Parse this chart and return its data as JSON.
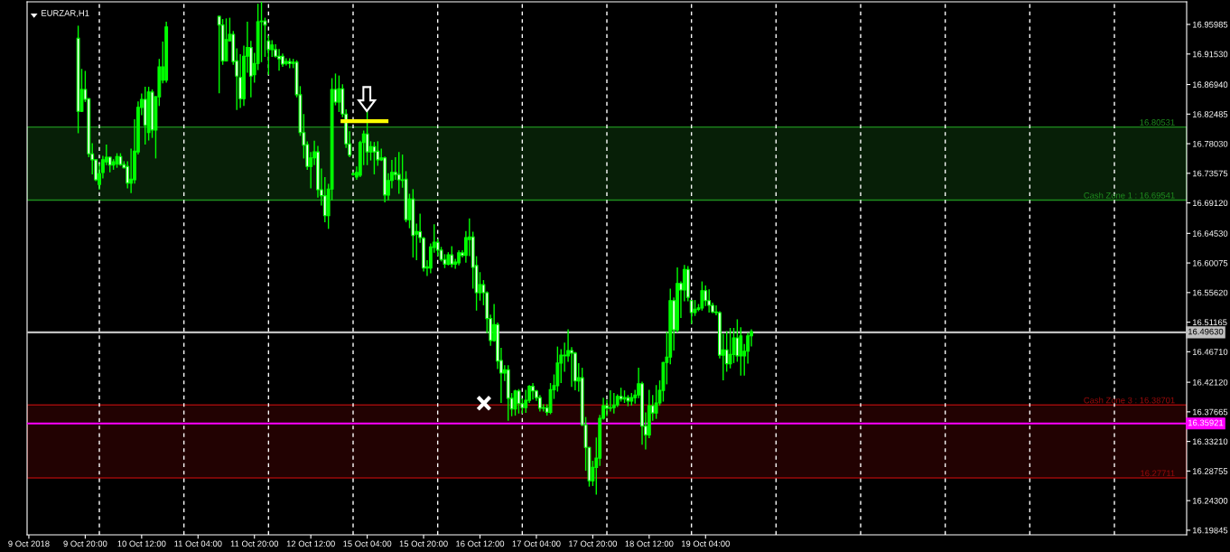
{
  "chart_data": {
    "type": "candlestick",
    "title": "EURZAR,H1",
    "color": "#00ff00",
    "categories": [
      "9 Oct 2018",
      null,
      null,
      null,
      null,
      null,
      null,
      null,
      null,
      null,
      null,
      null,
      null,
      null,
      null,
      null,
      "9 Oct 20:00",
      null,
      null,
      null,
      null,
      null,
      null,
      null,
      null,
      null,
      null,
      null,
      null,
      null,
      null,
      null,
      "10 Oct 12:00",
      null,
      null,
      null,
      null,
      null,
      null,
      null,
      null,
      null,
      null,
      null,
      null,
      null,
      null,
      null,
      "11 Oct 04:00",
      null,
      null,
      null,
      null,
      null,
      null,
      null,
      null,
      null,
      null,
      null,
      null,
      null,
      null,
      null,
      "11 Oct 20:00",
      null,
      null,
      null,
      null,
      null,
      null,
      null,
      null,
      null,
      null,
      null,
      null,
      null,
      null,
      null,
      "12 Oct 12:00",
      null,
      null,
      null,
      null,
      null,
      null,
      null,
      null,
      null,
      null,
      null,
      null,
      null,
      null,
      null,
      "15 Oct 04:00",
      null,
      null,
      null,
      null,
      null,
      null,
      null,
      null,
      null,
      null,
      null,
      null,
      null,
      null,
      null,
      "15 Oct 20:00",
      null,
      null,
      null,
      null,
      null,
      null,
      null,
      null,
      null,
      null,
      null,
      null,
      null,
      null,
      null,
      "16 Oct 12:00",
      null,
      null,
      null,
      null,
      null,
      null,
      null,
      null,
      null,
      null,
      null,
      null,
      null,
      null,
      null,
      "17 Oct 04:00",
      null,
      null,
      null,
      null,
      null,
      null,
      null,
      null,
      null,
      null,
      null,
      null,
      null,
      null,
      null,
      "17 Oct 20:00",
      null,
      null,
      null,
      null,
      null,
      null,
      null,
      null,
      null,
      null,
      null,
      null,
      null,
      null,
      null,
      "18 Oct 12:00",
      null,
      null,
      null,
      null,
      null,
      null,
      null,
      null,
      null,
      null,
      null,
      null,
      null,
      null,
      null,
      "19 Oct 04:00",
      null,
      null,
      null,
      null,
      null,
      null,
      null,
      null,
      null,
      null,
      null,
      null,
      null,
      null,
      null,
      null,
      null,
      null,
      null,
      null,
      null,
      null,
      null,
      null,
      null,
      null,
      null,
      null,
      null,
      null,
      null,
      null,
      null,
      null,
      null,
      null,
      null,
      null,
      null,
      null,
      null,
      null,
      null,
      null,
      null,
      null,
      null,
      null,
      null,
      null,
      null,
      null,
      null,
      null,
      null,
      null,
      null,
      null,
      null,
      null,
      null,
      null,
      null,
      null,
      null,
      null,
      null,
      null,
      null,
      null,
      null,
      null,
      null,
      null,
      null,
      null,
      null,
      null,
      null,
      null,
      null,
      null,
      null,
      null,
      null,
      null,
      null,
      null,
      null,
      null,
      null,
      null,
      null,
      null,
      null,
      null,
      null,
      null,
      null,
      null,
      null,
      null,
      null,
      null,
      null,
      null,
      null,
      null,
      null,
      null,
      null,
      null,
      null,
      null,
      null,
      null,
      null,
      null,
      null,
      null,
      null,
      null,
      null,
      null,
      null,
      null,
      null,
      null,
      null,
      null,
      null,
      null,
      null,
      null,
      null,
      null
    ],
    "ohlc": [
      null,
      null,
      null,
      null,
      null,
      null,
      null,
      null,
      null,
      null,
      null,
      null,
      null,
      null,
      [
        16.939,
        16.957,
        16.797,
        16.829
      ],
      [
        16.829,
        16.892,
        16.829,
        16.862
      ],
      [
        16.862,
        16.889,
        16.844,
        16.847
      ],
      [
        16.848,
        16.848,
        16.761,
        16.765
      ],
      [
        16.765,
        16.78,
        16.735,
        16.756
      ],
      [
        16.756,
        16.756,
        16.725,
        16.726
      ],
      [
        16.719,
        16.749,
        16.712,
        16.735
      ],
      [
        16.737,
        16.761,
        16.729,
        16.756
      ],
      [
        16.753,
        16.778,
        16.749,
        16.76
      ],
      [
        16.76,
        16.76,
        16.738,
        16.748
      ],
      [
        16.748,
        16.756,
        16.742,
        16.753
      ],
      [
        16.75,
        16.765,
        16.745,
        16.761
      ],
      [
        16.761,
        16.765,
        16.748,
        16.749
      ],
      [
        16.749,
        16.753,
        16.744,
        16.744
      ],
      [
        16.746,
        16.753,
        16.714,
        16.721
      ],
      [
        16.721,
        16.772,
        16.707,
        16.727
      ],
      [
        16.726,
        16.816,
        16.721,
        16.769
      ],
      [
        16.768,
        16.843,
        16.765,
        16.835
      ],
      [
        16.835,
        16.855,
        16.824,
        16.847
      ],
      [
        16.847,
        16.865,
        16.78,
        16.808
      ],
      [
        16.797,
        16.865,
        16.786,
        16.858
      ],
      [
        16.858,
        16.861,
        16.79,
        16.801
      ],
      [
        16.801,
        16.851,
        16.759,
        16.851
      ],
      [
        16.851,
        16.907,
        16.838,
        16.896
      ],
      [
        16.876,
        16.933,
        16.872,
        16.896
      ],
      [
        16.876,
        16.963,
        16.873,
        16.956
      ],
      null,
      null,
      null,
      null,
      null,
      null,
      null,
      null,
      null,
      null,
      null,
      null,
      null,
      null,
      [
        16.972,
        16.972,
        16.857,
        16.959
      ],
      [
        16.959,
        16.967,
        16.9,
        16.905
      ],
      [
        16.905,
        16.968,
        16.905,
        16.937
      ],
      [
        16.935,
        16.969,
        16.935,
        16.945
      ],
      [
        16.945,
        16.949,
        16.9,
        16.904
      ],
      [
        16.905,
        16.923,
        16.832,
        16.882
      ],
      [
        16.88,
        16.914,
        16.835,
        16.848
      ],
      [
        16.848,
        16.927,
        16.838,
        16.912
      ],
      [
        16.912,
        16.963,
        16.888,
        16.925
      ],
      [
        16.925,
        16.934,
        16.851,
        16.882
      ],
      [
        16.884,
        16.916,
        16.873,
        16.901
      ],
      [
        16.901,
        16.99,
        16.892,
        16.964
      ],
      [
        16.964,
        16.993,
        16.904,
        16.965
      ],
      [
        16.965,
        16.969,
        16.912,
        16.959
      ],
      [
        16.935,
        16.942,
        16.885,
        16.922
      ],
      [
        16.922,
        16.935,
        16.912,
        16.929
      ],
      [
        16.922,
        16.929,
        16.911,
        16.912
      ],
      [
        16.912,
        16.922,
        16.891,
        16.908
      ],
      [
        16.912,
        16.915,
        16.897,
        16.9
      ],
      [
        16.901,
        16.908,
        16.899,
        16.904
      ],
      [
        16.904,
        16.908,
        16.895,
        16.901
      ],
      [
        16.901,
        16.907,
        16.895,
        16.903
      ],
      [
        16.903,
        16.905,
        16.851,
        16.854
      ],
      [
        16.854,
        16.866,
        16.793,
        16.797
      ],
      [
        16.797,
        16.824,
        16.759,
        16.778
      ],
      [
        16.779,
        16.783,
        16.742,
        16.746
      ],
      [
        16.746,
        16.767,
        16.714,
        16.759
      ],
      [
        16.759,
        16.784,
        16.749,
        16.768
      ],
      [
        16.768,
        16.776,
        16.7,
        16.711
      ],
      [
        16.711,
        16.742,
        16.688,
        16.702
      ],
      [
        16.702,
        16.729,
        16.663,
        16.672
      ],
      [
        16.672,
        16.719,
        16.653,
        16.712
      ],
      [
        16.712,
        16.878,
        16.696,
        16.862
      ],
      [
        16.862,
        16.885,
        16.839,
        16.843
      ],
      [
        16.843,
        16.882,
        16.829,
        16.863
      ],
      [
        16.863,
        16.869,
        16.821,
        16.825
      ],
      [
        16.825,
        16.831,
        16.775,
        16.78
      ],
      [
        16.78,
        16.798,
        16.761,
        16.763
      ],
      [
        16.734,
        16.737,
        16.733,
        16.735
      ],
      [
        16.73,
        16.745,
        16.727,
        16.737
      ],
      [
        16.733,
        16.784,
        16.731,
        16.782
      ],
      [
        16.782,
        16.799,
        16.749,
        16.795
      ],
      [
        16.795,
        16.829,
        16.749,
        16.768
      ],
      [
        16.768,
        16.783,
        16.756,
        16.776
      ],
      [
        16.776,
        16.782,
        16.735,
        16.768
      ],
      [
        16.769,
        16.783,
        16.748,
        16.756
      ],
      [
        16.756,
        16.772,
        16.755,
        16.759
      ],
      [
        16.759,
        16.76,
        16.693,
        16.703
      ],
      [
        16.703,
        16.735,
        16.696,
        16.725
      ],
      [
        16.725,
        16.755,
        16.714,
        16.737
      ],
      [
        16.737,
        16.759,
        16.727,
        16.734
      ],
      [
        16.734,
        16.767,
        16.706,
        16.726
      ],
      [
        16.726,
        16.763,
        16.715,
        16.725
      ],
      [
        16.727,
        16.738,
        16.663,
        16.666
      ],
      [
        16.666,
        16.704,
        16.654,
        16.697
      ],
      [
        16.697,
        16.711,
        16.61,
        16.642
      ],
      [
        16.644,
        16.659,
        16.606,
        16.648
      ],
      [
        16.648,
        16.674,
        16.632,
        16.639
      ],
      [
        16.638,
        16.639,
        16.589,
        16.593
      ],
      [
        16.593,
        16.604,
        16.582,
        16.595
      ],
      [
        16.593,
        16.629,
        16.586,
        16.625
      ],
      [
        16.624,
        16.658,
        16.617,
        16.632
      ],
      [
        16.632,
        16.636,
        16.612,
        16.62
      ],
      [
        16.62,
        16.624,
        16.604,
        16.606
      ],
      [
        16.606,
        16.613,
        16.594,
        16.599
      ],
      [
        16.599,
        16.616,
        16.598,
        16.613
      ],
      [
        16.613,
        16.625,
        16.595,
        16.599
      ],
      [
        16.599,
        16.606,
        16.593,
        16.602
      ],
      [
        16.601,
        16.619,
        16.598,
        16.616
      ],
      [
        16.616,
        16.619,
        16.61,
        16.612
      ],
      [
        16.612,
        16.648,
        16.602,
        16.639
      ],
      [
        16.636,
        16.667,
        16.612,
        16.64
      ],
      [
        16.64,
        16.647,
        16.563,
        16.594
      ],
      [
        16.597,
        16.61,
        16.53,
        16.556
      ],
      [
        16.556,
        16.586,
        16.545,
        16.568
      ],
      [
        16.568,
        16.574,
        16.538,
        16.556
      ],
      [
        16.556,
        16.557,
        16.496,
        16.517
      ],
      [
        16.517,
        16.522,
        16.477,
        16.484
      ],
      [
        16.484,
        16.538,
        16.483,
        16.508
      ],
      [
        16.508,
        16.51,
        16.442,
        16.453
      ],
      [
        16.454,
        16.472,
        16.391,
        16.435
      ],
      [
        16.435,
        16.446,
        16.424,
        16.44
      ],
      [
        16.44,
        16.446,
        16.364,
        16.397
      ],
      [
        16.397,
        16.404,
        16.371,
        16.381
      ],
      [
        16.381,
        16.409,
        16.372,
        16.408
      ],
      [
        16.408,
        16.41,
        16.375,
        16.389
      ],
      [
        16.389,
        16.396,
        16.375,
        16.383
      ],
      [
        16.383,
        16.409,
        16.376,
        16.394
      ],
      [
        16.394,
        16.416,
        16.391,
        16.415
      ],
      [
        16.415,
        16.419,
        16.396,
        16.408
      ],
      [
        16.408,
        16.409,
        16.394,
        16.398
      ],
      [
        16.398,
        16.401,
        16.378,
        16.382
      ],
      [
        16.382,
        16.387,
        16.378,
        16.383
      ],
      [
        16.383,
        16.387,
        16.372,
        16.376
      ],
      [
        16.376,
        16.419,
        16.374,
        16.41
      ],
      [
        16.41,
        16.432,
        16.397,
        16.416
      ],
      [
        16.416,
        16.474,
        16.408,
        16.45
      ],
      [
        16.45,
        16.47,
        16.421,
        16.462
      ],
      [
        16.462,
        16.48,
        16.438,
        16.461
      ],
      [
        16.461,
        16.5,
        16.453,
        16.469
      ],
      [
        16.469,
        16.473,
        16.415,
        16.465
      ],
      [
        16.465,
        16.466,
        16.41,
        16.423
      ],
      [
        16.423,
        16.449,
        16.408,
        16.428
      ],
      [
        16.428,
        16.442,
        16.356,
        16.357
      ],
      [
        16.357,
        16.368,
        16.289,
        16.323
      ],
      [
        16.323,
        16.323,
        16.265,
        16.273
      ],
      [
        16.273,
        16.302,
        16.266,
        16.293
      ],
      [
        16.293,
        16.337,
        16.253,
        16.307
      ],
      [
        16.307,
        16.371,
        16.296,
        16.367
      ],
      [
        16.367,
        16.397,
        16.366,
        16.386
      ],
      [
        16.386,
        16.394,
        16.371,
        16.382
      ],
      [
        16.382,
        16.408,
        16.378,
        16.383
      ],
      [
        16.383,
        16.404,
        16.375,
        16.387
      ],
      [
        16.387,
        16.402,
        16.385,
        16.4
      ],
      [
        16.4,
        16.412,
        16.393,
        16.396
      ],
      [
        16.396,
        16.408,
        16.391,
        16.398
      ],
      [
        16.398,
        16.401,
        16.386,
        16.393
      ],
      [
        16.393,
        16.404,
        16.387,
        16.398
      ],
      [
        16.398,
        16.409,
        16.39,
        16.402
      ],
      [
        16.402,
        16.442,
        16.398,
        16.419
      ],
      [
        16.419,
        16.421,
        16.328,
        16.355
      ],
      [
        16.355,
        16.375,
        16.321,
        16.342
      ],
      [
        16.342,
        16.409,
        16.338,
        16.386
      ],
      [
        16.386,
        16.401,
        16.364,
        16.375
      ],
      [
        16.375,
        16.416,
        16.367,
        16.39
      ],
      [
        16.39,
        16.423,
        16.387,
        16.409
      ],
      [
        16.409,
        16.451,
        16.393,
        16.451
      ],
      [
        16.451,
        16.496,
        16.419,
        16.459
      ],
      [
        16.459,
        16.561,
        16.449,
        16.544
      ],
      [
        16.544,
        16.548,
        16.47,
        16.5
      ],
      [
        16.5,
        16.593,
        16.497,
        16.57
      ],
      [
        16.57,
        16.572,
        16.519,
        16.56
      ],
      [
        16.56,
        16.597,
        16.544,
        16.591
      ],
      [
        16.591,
        16.595,
        16.544,
        16.549
      ],
      [
        16.544,
        16.544,
        16.51,
        16.526
      ],
      [
        16.526,
        16.544,
        16.522,
        16.531
      ],
      [
        16.531,
        16.538,
        16.529,
        16.533
      ],
      [
        16.533,
        16.572,
        16.53,
        16.559
      ],
      [
        16.559,
        16.566,
        16.537,
        16.544
      ],
      [
        16.544,
        16.56,
        16.527,
        16.537
      ],
      [
        16.537,
        16.54,
        16.526,
        16.527
      ],
      [
        16.527,
        16.536,
        16.523,
        16.526
      ],
      [
        16.526,
        16.527,
        16.458,
        16.462
      ],
      [
        16.462,
        16.493,
        16.425,
        16.47
      ],
      [
        16.47,
        16.497,
        16.438,
        16.449
      ],
      [
        16.449,
        16.502,
        16.443,
        16.463
      ],
      [
        16.463,
        16.502,
        16.451,
        16.488
      ],
      [
        16.488,
        16.515,
        16.453,
        16.461
      ],
      [
        16.461,
        16.503,
        16.432,
        16.491
      ],
      [
        16.461,
        16.478,
        16.432,
        16.468
      ],
      [
        16.468,
        16.495,
        16.45,
        16.491
      ],
      [
        16.491,
        16.5,
        16.476,
        16.497
      ],
      null,
      null,
      null,
      null,
      null,
      null,
      null,
      null,
      null,
      null,
      null,
      null,
      null,
      null,
      null,
      null,
      null,
      null,
      null,
      null,
      null,
      null,
      null,
      null,
      null,
      null,
      null,
      null,
      null,
      null,
      null,
      null,
      null,
      null,
      null,
      null,
      null,
      null,
      null,
      null,
      null,
      null,
      null,
      null,
      null,
      null,
      null,
      null,
      null,
      null,
      null,
      null,
      null,
      null,
      null,
      null,
      null,
      null,
      null,
      null,
      null,
      null,
      null,
      null,
      null,
      null,
      null,
      null,
      null,
      null,
      null,
      null,
      null,
      null,
      null,
      null,
      null,
      null,
      null,
      null,
      null,
      null,
      null,
      null,
      null,
      null,
      null,
      null,
      null,
      null,
      null,
      null,
      null,
      null,
      null,
      null,
      null,
      null,
      null,
      null,
      null,
      null,
      null,
      null,
      null,
      null,
      null,
      null,
      null,
      null,
      null,
      null,
      null,
      null,
      null,
      null,
      null,
      null,
      null,
      null,
      null,
      null,
      null
    ],
    "ylim": [
      16.1915,
      16.9939
    ],
    "yticks": [
      {
        "value": 16.95985,
        "label": "16.95985"
      },
      {
        "value": 16.9153,
        "label": "16.91530"
      },
      {
        "value": 16.8694,
        "label": "16.86940"
      },
      {
        "value": 16.82485,
        "label": "16.82485"
      },
      {
        "value": 16.7803,
        "label": "16.78030"
      },
      {
        "value": 16.73575,
        "label": "16.73575"
      },
      {
        "value": 16.6912,
        "label": "16.69120"
      },
      {
        "value": 16.6453,
        "label": "16.64530"
      },
      {
        "value": 16.60075,
        "label": "16.60075"
      },
      {
        "value": 16.5562,
        "label": "16.55620"
      },
      {
        "value": 16.51165,
        "label": "16.51165"
      },
      {
        "value": 16.4671,
        "label": "16.46710"
      },
      {
        "value": 16.4212,
        "label": "16.42120"
      },
      {
        "value": 16.37665,
        "label": "16.37665"
      },
      {
        "value": 16.3321,
        "label": "16.33210"
      },
      {
        "value": 16.28755,
        "label": "16.28755"
      },
      {
        "value": 16.243,
        "label": "16.24300"
      },
      {
        "value": 16.19845,
        "label": "16.19845"
      }
    ],
    "ref_lines": [
      {
        "axis": "y",
        "value": 16.4963,
        "label": "16.49630",
        "color": "#c0c0c0",
        "line_style": "solid"
      },
      {
        "axis": "y",
        "value": 16.35921,
        "label": "16.35921",
        "color": "#ff00ff",
        "line_style": "solid"
      }
    ],
    "bands": [
      {
        "axis": "y",
        "from": 16.69541,
        "to": 16.80531,
        "label": "Cash Zone 1 : 16.69541",
        "color": "#1e8c1e"
      },
      {
        "axis": "y",
        "from": 16.38701,
        "to": 16.27711,
        "label": "Cash Zone 3 : 16.38701",
        "color": "#9a0a0a"
      }
    ],
    "annotations": [
      {
        "text": "16.80531",
        "y": 16.80531
      },
      {
        "text": "16.27711",
        "y": 16.27711
      }
    ]
  }
}
